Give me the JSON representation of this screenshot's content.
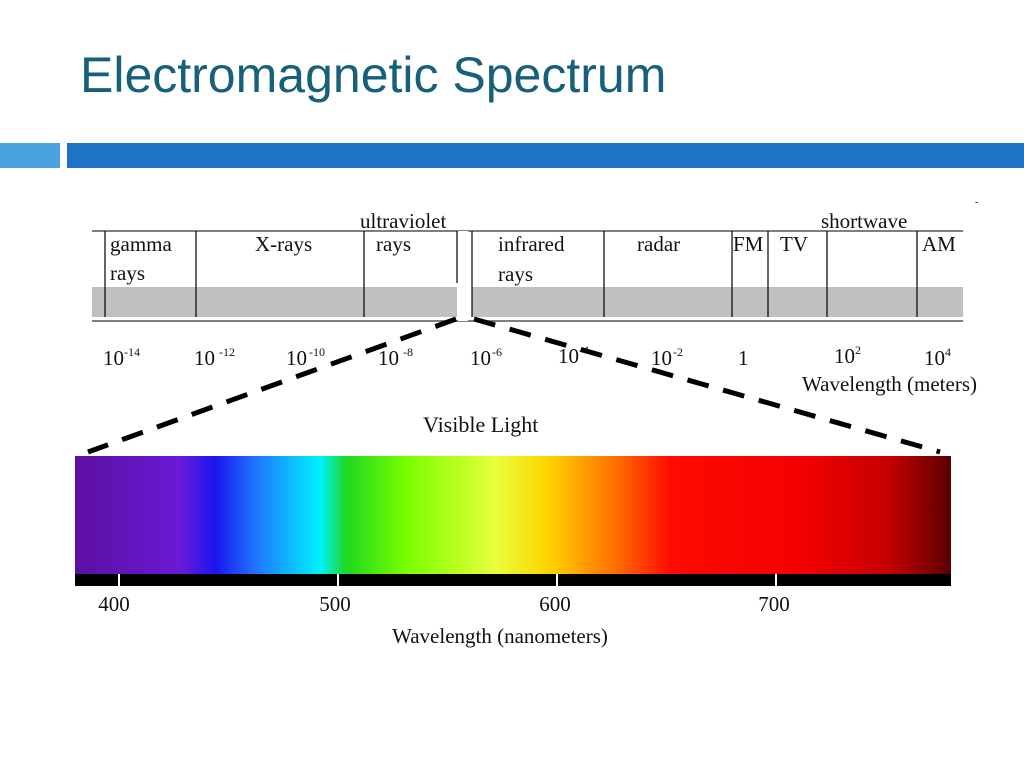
{
  "slide": {
    "title": "Electromagnetic Spectrum"
  },
  "em_spectrum": {
    "bands": [
      {
        "id": "gamma",
        "lines": [
          "gamma",
          "rays"
        ]
      },
      {
        "id": "xrays",
        "lines": [
          "X-rays"
        ]
      },
      {
        "id": "ultraviolet",
        "lines": [
          "ultraviolet",
          "rays"
        ]
      },
      {
        "id": "infrared",
        "lines": [
          "infrared",
          "rays"
        ]
      },
      {
        "id": "radar",
        "lines": [
          "radar"
        ]
      },
      {
        "id": "fm",
        "lines": [
          "FM"
        ]
      },
      {
        "id": "tv",
        "lines": [
          "TV"
        ]
      },
      {
        "id": "shortwave",
        "lines": [
          "shortwave"
        ]
      },
      {
        "id": "am",
        "lines": [
          "AM"
        ]
      }
    ],
    "ticks": [
      {
        "base": "10",
        "exp": "-14"
      },
      {
        "base": "10",
        "exp": "-12"
      },
      {
        "base": "10",
        "exp": "-10"
      },
      {
        "base": "10",
        "exp": "-8"
      },
      {
        "base": "10",
        "exp": "-6"
      },
      {
        "base": "10",
        "exp": "-4"
      },
      {
        "base": "10",
        "exp": "-2"
      },
      {
        "base": "1",
        "exp": ""
      },
      {
        "base": "10",
        "exp": "2"
      },
      {
        "base": "10",
        "exp": "4"
      }
    ],
    "axis_label": "Wavelength (meters)"
  },
  "visible": {
    "title": "Visible Light",
    "ticks": [
      "400",
      "500",
      "600",
      "700"
    ],
    "axis_label": "Wavelength (nanometers)",
    "gradient": [
      "#5c0fa0",
      "#6a19d6",
      "#1b16f0",
      "#1f7cff",
      "#00f2ff",
      "#1fd81f",
      "#7bff00",
      "#e8ff3a",
      "#ffd400",
      "#ff6a00",
      "#ff0a00",
      "#f40000",
      "#c40000",
      "#5a0000"
    ]
  },
  "colors": {
    "title": "#17607a",
    "band_light": "#4aa3df",
    "band_dark": "#1f73c6",
    "bar_gray": "#c0c0c0"
  }
}
